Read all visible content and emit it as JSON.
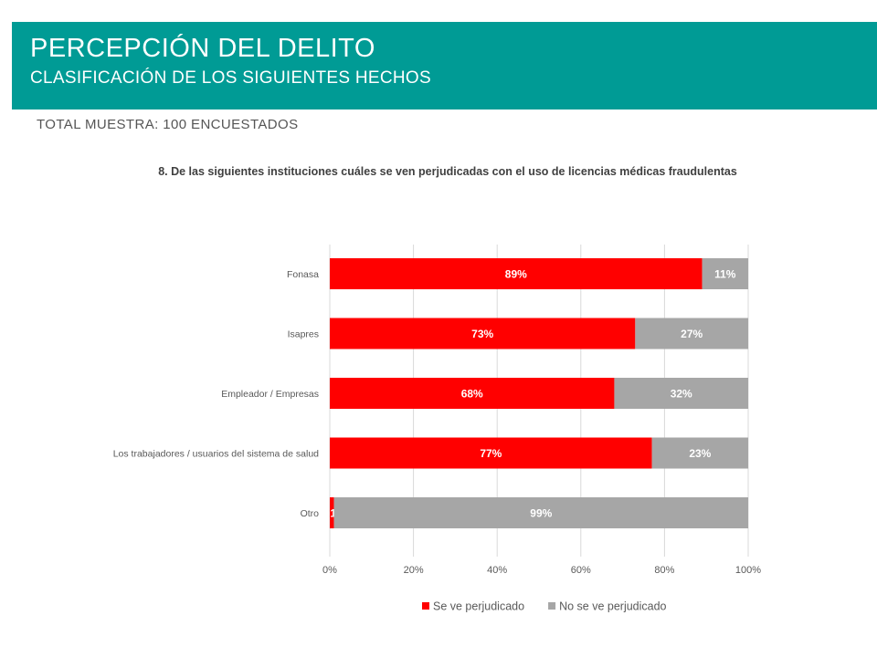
{
  "header": {
    "title": "PERCEPCIÓN DEL DELITO",
    "subtitle": "CLASIFICACIÓN DE LOS SIGUIENTES HECHOS"
  },
  "sample_note": "TOTAL MUESTRA: 100 ENCUESTADOS",
  "chart_data": {
    "type": "bar",
    "orientation": "horizontal",
    "stacked": true,
    "title": "8. De las siguientes instituciones cuáles se ven perjudicadas con el uso de licencias médicas fraudulentas",
    "categories": [
      "Fonasa",
      "Isapres",
      "Empleador / Empresas",
      "Los trabajadores / usuarios del sistema de salud",
      "Otro"
    ],
    "series": [
      {
        "name": "Se ve perjudicado",
        "color": "#ff0000",
        "values": [
          89,
          73,
          68,
          77,
          1
        ],
        "labels": [
          "89%",
          "73%",
          "68%",
          "77%",
          "1%"
        ]
      },
      {
        "name": "No se ve perjudicado",
        "color": "#a6a6a6",
        "values": [
          11,
          27,
          32,
          23,
          99
        ],
        "labels": [
          "11%",
          "27%",
          "32%",
          "23%",
          "99%"
        ]
      }
    ],
    "xlim": [
      0,
      100
    ],
    "x_ticks": [
      "0%",
      "20%",
      "40%",
      "60%",
      "80%",
      "100%"
    ],
    "grid": true,
    "legend_position": "bottom"
  }
}
